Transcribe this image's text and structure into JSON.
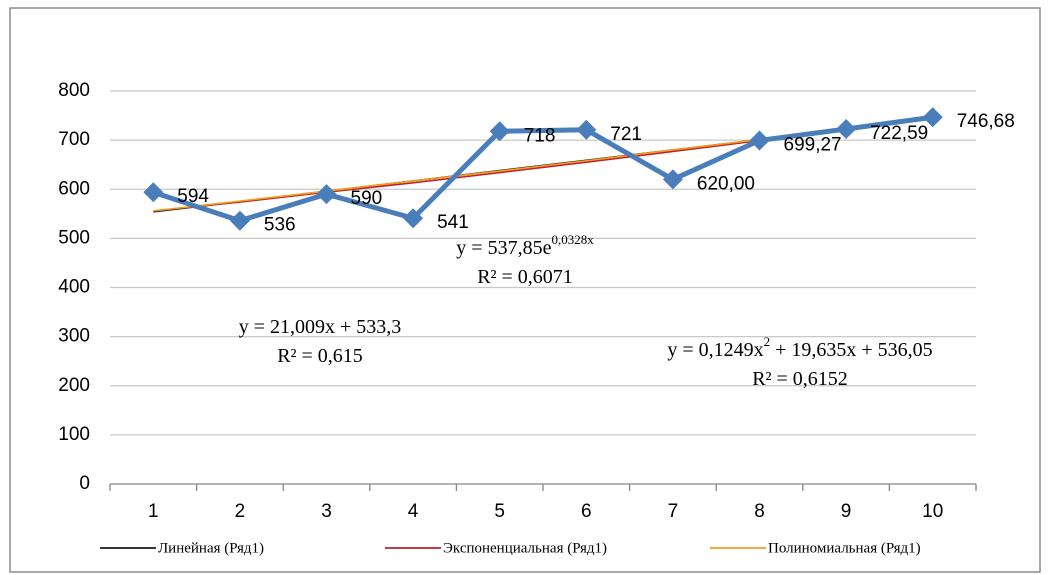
{
  "chart_data": {
    "type": "line",
    "categories": [
      "1",
      "2",
      "3",
      "4",
      "5",
      "6",
      "7",
      "8",
      "9",
      "10"
    ],
    "series": [
      {
        "color": "#4a7ebb",
        "values": [
          594,
          536,
          590,
          541,
          718,
          721,
          620,
          699.27,
          722.59,
          746.68
        ],
        "value_labels": [
          "594",
          "536",
          "590",
          "541",
          "718",
          "721",
          "620,00",
          "699,27",
          "722,59",
          "746,68"
        ]
      },
      {
        "name": "Линейная (Ряд1)",
        "color": "#1a1a1a",
        "values": [
          554,
          575,
          596,
          617,
          638,
          659,
          680,
          701,
          722,
          743
        ]
      },
      {
        "name": "Экспоненциальная (Ряд1)",
        "color": "#c0202a",
        "values": [
          556,
          574,
          594,
          613,
          634,
          655,
          677,
          699,
          723,
          747
        ]
      },
      {
        "name": "Полиномиальная (Ряд1)",
        "color": "#f0a020",
        "values": [
          556,
          576,
          596,
          617,
          637,
          658,
          680,
          701,
          723,
          745
        ]
      }
    ],
    "ylim": [
      0,
      800
    ],
    "yticks": [
      0,
      100,
      200,
      300,
      400,
      500,
      600,
      700,
      800
    ],
    "grid": true,
    "legend": "bottom",
    "annotations": [
      {
        "lines": [
          [
            {
              "text": "y = 21,009x + 533,3"
            }
          ],
          [
            {
              "text": "R² = 0,615"
            }
          ]
        ]
      },
      {
        "lines": [
          [
            {
              "text": "y = 537,85e"
            },
            {
              "text": "0,0328x",
              "sup": true
            }
          ],
          [
            {
              "text": "R² = 0,6071"
            }
          ]
        ]
      },
      {
        "lines": [
          [
            {
              "text": "y = 0,1249x"
            },
            {
              "text": "2",
              "sup": true
            },
            {
              "text": " + 19,635x + 536,05"
            }
          ],
          [
            {
              "text": "R² = 0,6152"
            }
          ]
        ]
      }
    ]
  }
}
